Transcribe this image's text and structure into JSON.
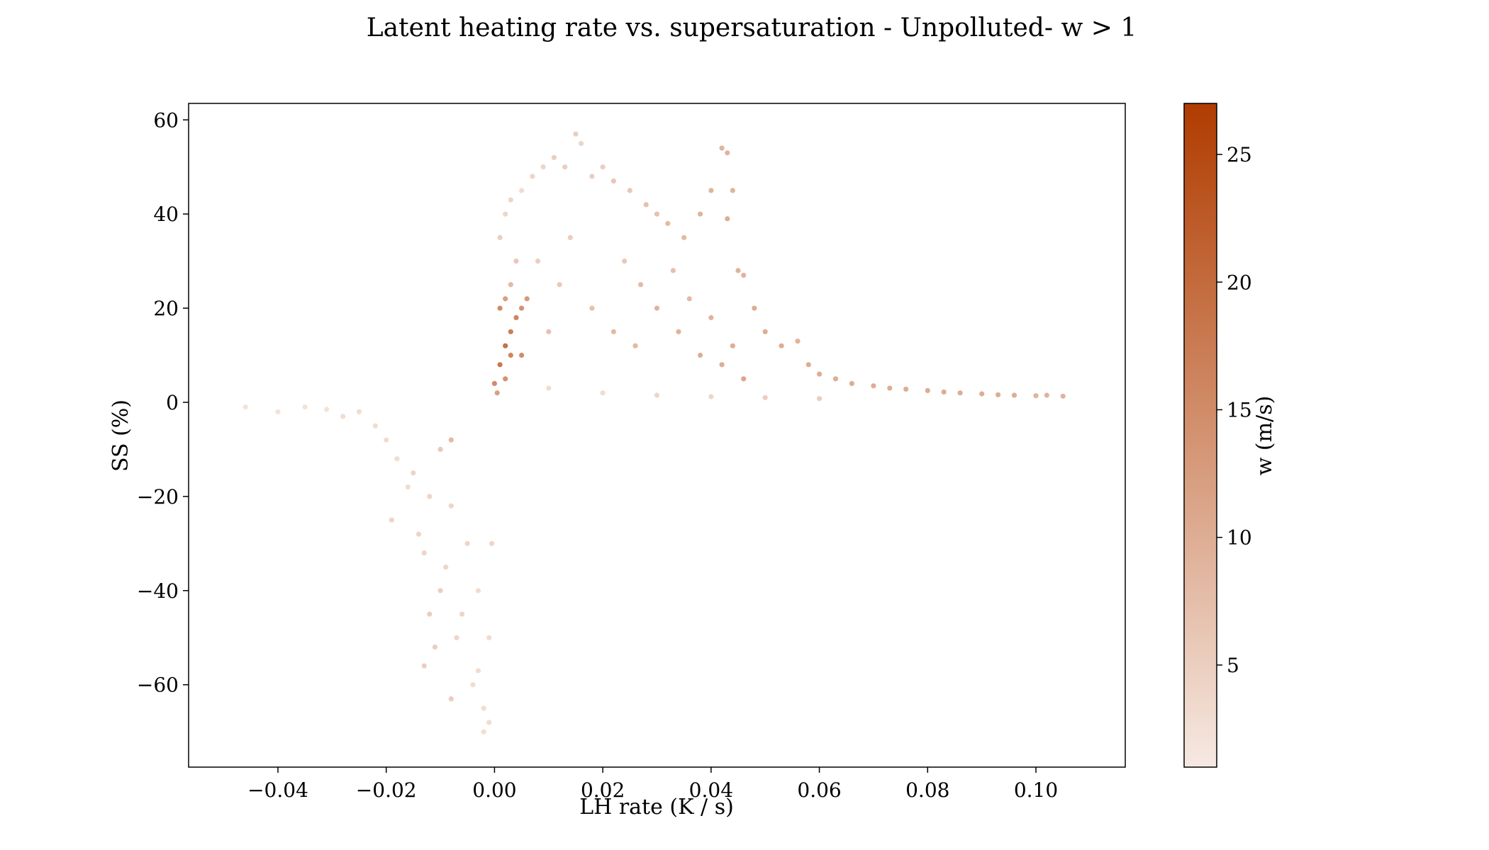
{
  "chart_data": {
    "type": "scatter",
    "title": "Latent heating rate vs. supersaturation - Unpolluted- w > 1",
    "xlabel": "LH rate (K / s)",
    "ylabel": "SS (%)",
    "xlim": [
      -0.0565,
      0.1165
    ],
    "ylim": [
      -77.5,
      63.5
    ],
    "x_ticks": [
      {
        "value": -0.04,
        "label": "−0.04"
      },
      {
        "value": -0.02,
        "label": "−0.02"
      },
      {
        "value": 0.0,
        "label": "0.00"
      },
      {
        "value": 0.02,
        "label": "0.02"
      },
      {
        "value": 0.04,
        "label": "0.04"
      },
      {
        "value": 0.06,
        "label": "0.06"
      },
      {
        "value": 0.08,
        "label": "0.08"
      },
      {
        "value": 0.1,
        "label": "0.10"
      }
    ],
    "y_ticks": [
      {
        "value": 60,
        "label": "60"
      },
      {
        "value": 40,
        "label": "40"
      },
      {
        "value": 20,
        "label": "20"
      },
      {
        "value": 0,
        "label": "0"
      },
      {
        "value": -20,
        "label": "−20"
      },
      {
        "value": -40,
        "label": "−40"
      },
      {
        "value": -60,
        "label": "−60"
      }
    ],
    "colorbar": {
      "label": "w (m/s)",
      "range": [
        1,
        27
      ],
      "ticks": [
        {
          "value": 5,
          "label": "5"
        },
        {
          "value": 10,
          "label": "10"
        },
        {
          "value": 15,
          "label": "15"
        },
        {
          "value": 20,
          "label": "20"
        },
        {
          "value": 25,
          "label": "25"
        }
      ],
      "color_low": "#f6e9e2",
      "color_high": "#b03c00"
    },
    "grid": false,
    "points": [
      [
        -0.046,
        -1,
        2
      ],
      [
        -0.04,
        -2,
        2
      ],
      [
        -0.035,
        -1,
        2
      ],
      [
        -0.031,
        -1.5,
        2
      ],
      [
        -0.028,
        -3,
        3
      ],
      [
        -0.025,
        -2,
        3
      ],
      [
        -0.022,
        -5,
        3
      ],
      [
        -0.02,
        -8,
        3
      ],
      [
        -0.018,
        -12,
        3
      ],
      [
        -0.015,
        -15,
        4
      ],
      [
        -0.014,
        -28,
        4
      ],
      [
        -0.013,
        -32,
        4
      ],
      [
        -0.012,
        -45,
        5
      ],
      [
        -0.013,
        -56,
        5
      ],
      [
        -0.011,
        -52,
        5
      ],
      [
        -0.01,
        -40,
        5
      ],
      [
        -0.009,
        -35,
        4
      ],
      [
        -0.008,
        -63,
        5
      ],
      [
        -0.008,
        -22,
        4
      ],
      [
        -0.007,
        -50,
        4
      ],
      [
        -0.006,
        -45,
        4
      ],
      [
        -0.005,
        -30,
        4
      ],
      [
        -0.004,
        -60,
        3
      ],
      [
        -0.003,
        -57,
        3
      ],
      [
        -0.003,
        -40,
        3
      ],
      [
        -0.002,
        -65,
        3
      ],
      [
        -0.002,
        -70,
        3
      ],
      [
        -0.001,
        -68,
        3
      ],
      [
        -0.001,
        -50,
        3
      ],
      [
        -0.0005,
        -30,
        4
      ],
      [
        -0.01,
        -10,
        6
      ],
      [
        -0.008,
        -8,
        8
      ],
      [
        -0.012,
        -20,
        4
      ],
      [
        -0.016,
        -18,
        3
      ],
      [
        -0.019,
        -25,
        4
      ],
      [
        0.0,
        4,
        15
      ],
      [
        0.001,
        8,
        18
      ],
      [
        0.002,
        12,
        19
      ],
      [
        0.003,
        15,
        17
      ],
      [
        0.004,
        18,
        16
      ],
      [
        0.005,
        10,
        15
      ],
      [
        0.001,
        20,
        15
      ],
      [
        0.002,
        22,
        12
      ],
      [
        0.003,
        25,
        8
      ],
      [
        0.004,
        30,
        6
      ],
      [
        0.001,
        35,
        5
      ],
      [
        0.002,
        40,
        4
      ],
      [
        0.003,
        43,
        4
      ],
      [
        0.005,
        45,
        3
      ],
      [
        0.007,
        48,
        4
      ],
      [
        0.009,
        50,
        4
      ],
      [
        0.011,
        52,
        5
      ],
      [
        0.013,
        50,
        5
      ],
      [
        0.015,
        57,
        5
      ],
      [
        0.016,
        55,
        4
      ],
      [
        0.018,
        48,
        5
      ],
      [
        0.02,
        50,
        5
      ],
      [
        0.022,
        47,
        6
      ],
      [
        0.025,
        45,
        6
      ],
      [
        0.028,
        42,
        7
      ],
      [
        0.03,
        40,
        7
      ],
      [
        0.032,
        38,
        8
      ],
      [
        0.035,
        35,
        8
      ],
      [
        0.038,
        40,
        9
      ],
      [
        0.04,
        45,
        9
      ],
      [
        0.042,
        54,
        9
      ],
      [
        0.043,
        53,
        9
      ],
      [
        0.044,
        45,
        9
      ],
      [
        0.043,
        39,
        10
      ],
      [
        0.045,
        28,
        9
      ],
      [
        0.046,
        27,
        9
      ],
      [
        0.048,
        20,
        10
      ],
      [
        0.05,
        15,
        10
      ],
      [
        0.053,
        12,
        10
      ],
      [
        0.056,
        13,
        9
      ],
      [
        0.058,
        8,
        10
      ],
      [
        0.06,
        6,
        10
      ],
      [
        0.063,
        5,
        10
      ],
      [
        0.066,
        4,
        10
      ],
      [
        0.07,
        3.5,
        10
      ],
      [
        0.073,
        3,
        10
      ],
      [
        0.076,
        2.8,
        10
      ],
      [
        0.08,
        2.5,
        10
      ],
      [
        0.083,
        2.2,
        10
      ],
      [
        0.086,
        2,
        10
      ],
      [
        0.09,
        1.8,
        10
      ],
      [
        0.093,
        1.6,
        10
      ],
      [
        0.096,
        1.5,
        10
      ],
      [
        0.1,
        1.4,
        9
      ],
      [
        0.102,
        1.5,
        9
      ],
      [
        0.105,
        1.3,
        9
      ],
      [
        0.01,
        3,
        3
      ],
      [
        0.02,
        2,
        3
      ],
      [
        0.03,
        1.5,
        4
      ],
      [
        0.04,
        1.2,
        4
      ],
      [
        0.05,
        1,
        5
      ],
      [
        0.06,
        0.8,
        5
      ],
      [
        0.008,
        30,
        5
      ],
      [
        0.012,
        25,
        6
      ],
      [
        0.018,
        20,
        7
      ],
      [
        0.022,
        15,
        8
      ],
      [
        0.026,
        12,
        8
      ],
      [
        0.03,
        20,
        9
      ],
      [
        0.034,
        15,
        9
      ],
      [
        0.038,
        10,
        10
      ],
      [
        0.042,
        8,
        10
      ],
      [
        0.046,
        5,
        11
      ],
      [
        0.01,
        15,
        7
      ],
      [
        0.014,
        35,
        5
      ],
      [
        0.024,
        30,
        6
      ],
      [
        0.027,
        25,
        8
      ],
      [
        0.033,
        28,
        7
      ],
      [
        0.036,
        22,
        8
      ],
      [
        0.04,
        18,
        9
      ],
      [
        0.044,
        12,
        10
      ],
      [
        0.005,
        20,
        14
      ],
      [
        0.006,
        22,
        13
      ],
      [
        0.003,
        10,
        16
      ],
      [
        0.002,
        5,
        14
      ],
      [
        0.0005,
        2,
        12
      ]
    ]
  }
}
